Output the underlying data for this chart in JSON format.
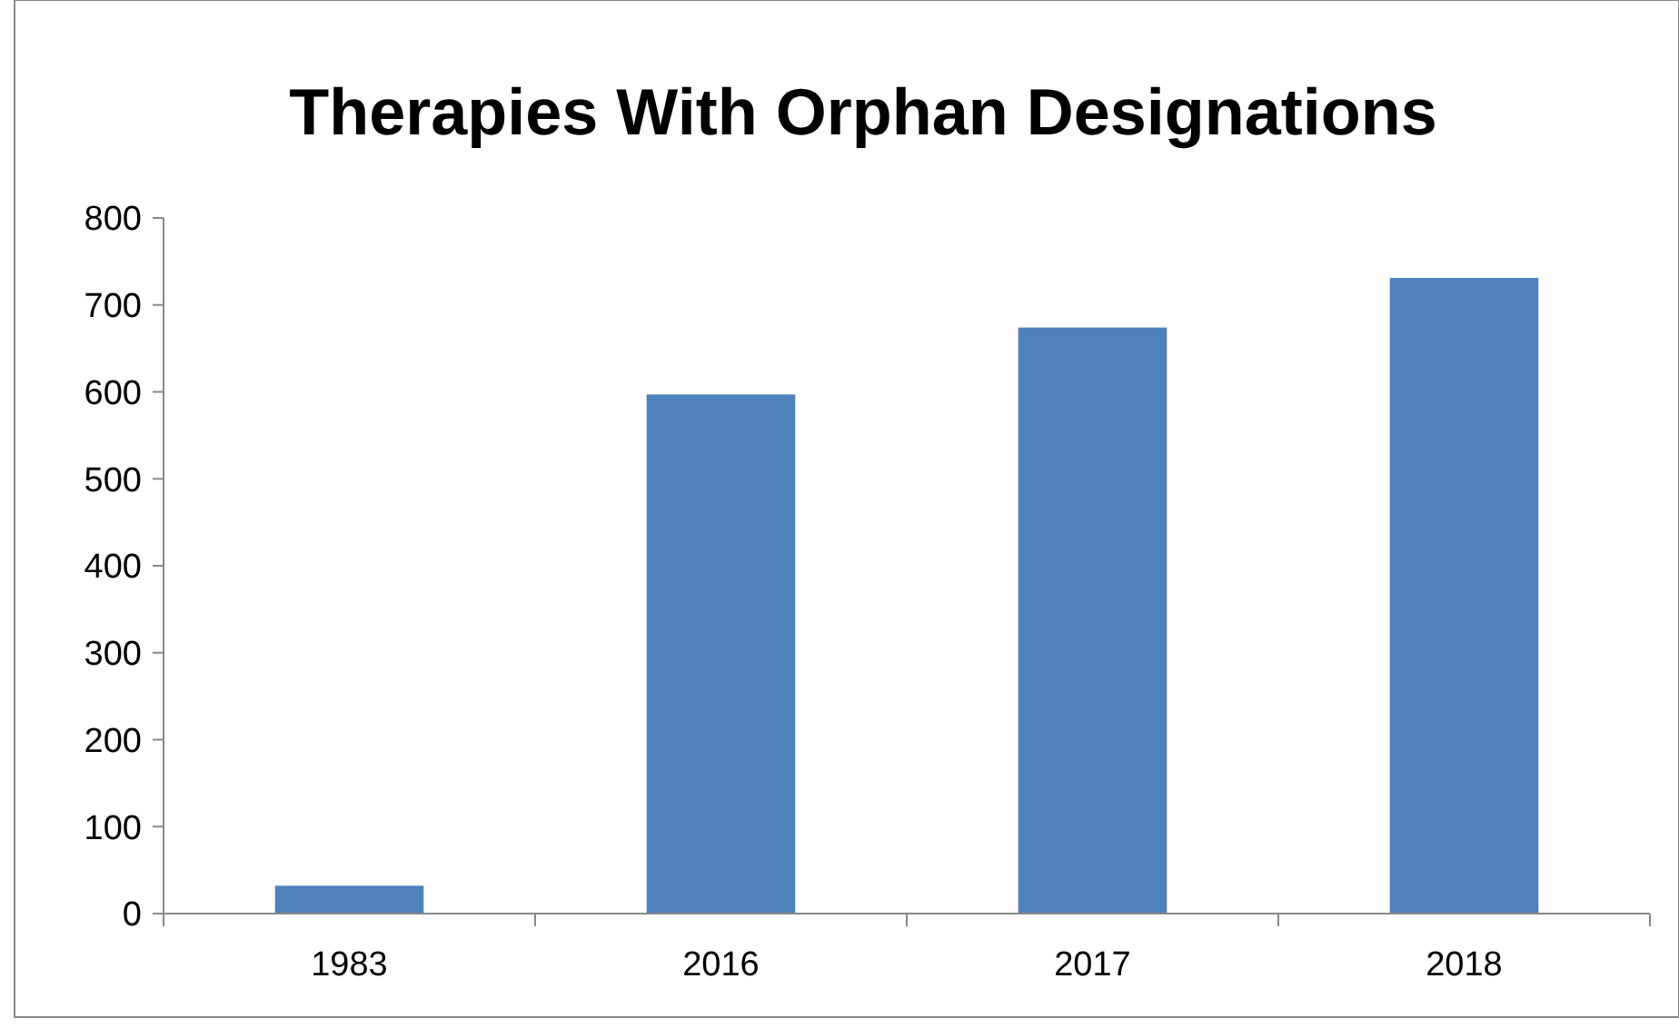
{
  "chart_data": {
    "type": "bar",
    "title": "Therapies With Orphan Designations",
    "categories": [
      "1983",
      "2016",
      "2017",
      "2018"
    ],
    "values": [
      32,
      597,
      674,
      731
    ],
    "color": "#4f81bd",
    "ylim": [
      0,
      800
    ],
    "yticks": [
      0,
      100,
      200,
      300,
      400,
      500,
      600,
      700,
      800
    ],
    "grid": false
  }
}
